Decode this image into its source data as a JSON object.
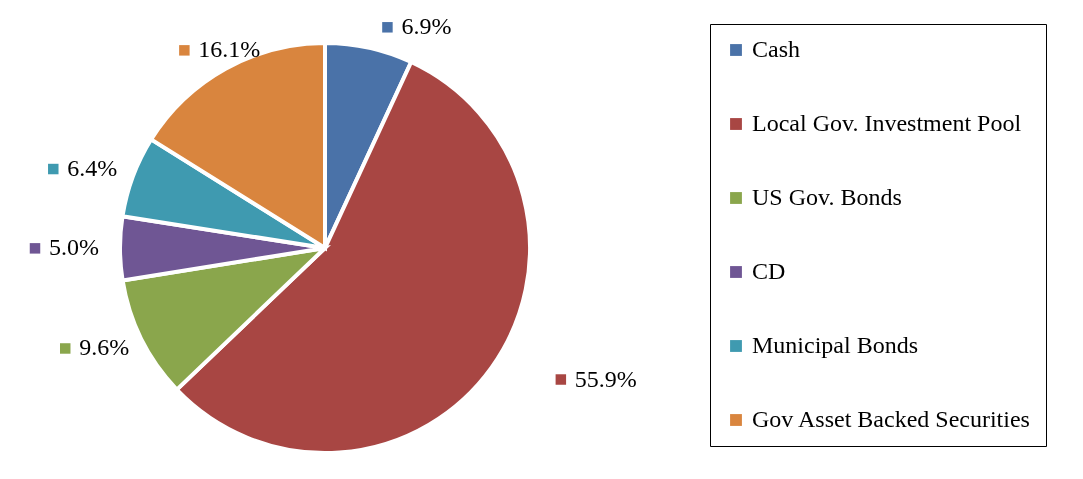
{
  "chart_data": {
    "type": "pie",
    "categories": [
      "Cash",
      "Local Gov. Investment Pool",
      "US Gov. Bonds",
      "CD",
      "Municipal Bonds",
      "Gov Asset Backed Securities"
    ],
    "values": [
      6.9,
      55.9,
      9.6,
      5.0,
      6.4,
      16.1
    ],
    "colors": [
      "#4a72a8",
      "#a84643",
      "#8aa64c",
      "#6f5694",
      "#3f9ab0",
      "#d9853e"
    ],
    "value_labels": [
      "6.9%",
      "55.9%",
      "9.6%",
      "5.0%",
      "6.4%",
      "16.1%"
    ],
    "legend": "right"
  }
}
